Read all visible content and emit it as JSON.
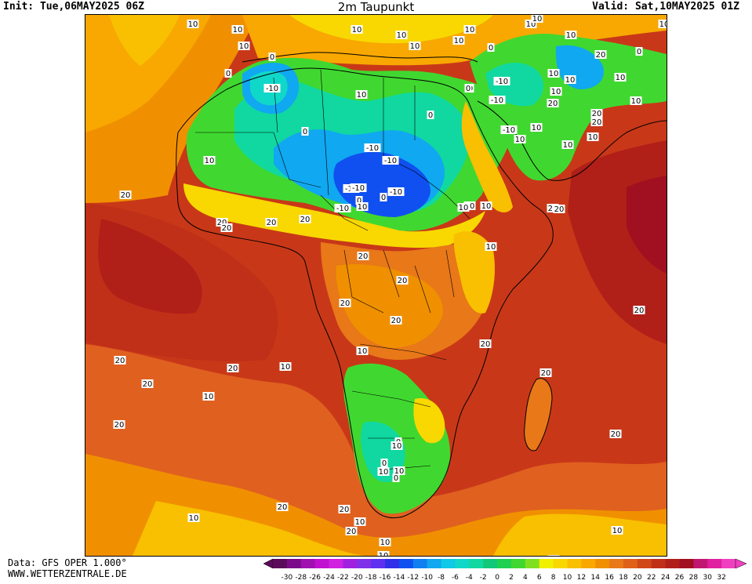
{
  "header": {
    "init": "Init: Tue,06MAY2025 06Z",
    "title": "2m Taupunkt",
    "valid": "Valid: Sat,10MAY2025 01Z"
  },
  "footer": {
    "data_source": "Data: GFS OPER 1.000°",
    "website": "WWW.WETTERZENTRALE.DE"
  },
  "colorbar": {
    "ticks": [
      "-30",
      "-28",
      "-26",
      "-24",
      "-22",
      "-20",
      "-18",
      "-16",
      "-14",
      "-12",
      "-10",
      "-8",
      "-6",
      "-4",
      "-2",
      "0",
      "2",
      "4",
      "6",
      "8",
      "10",
      "12",
      "14",
      "16",
      "18",
      "20",
      "22",
      "24",
      "26",
      "28",
      "30",
      "32"
    ],
    "colors": [
      "#5a0a5a",
      "#7a0a8a",
      "#a010b0",
      "#c010d0",
      "#d020e0",
      "#a020e0",
      "#8030e8",
      "#6030f0",
      "#3030e8",
      "#1050f0",
      "#1080f0",
      "#10a8f0",
      "#10c8e8",
      "#10d8c8",
      "#10d8a0",
      "#10c878",
      "#20d050",
      "#40d830",
      "#80e020",
      "#f0f000",
      "#f8d800",
      "#f8c000",
      "#f8a800",
      "#f09000",
      "#e87818",
      "#e06018",
      "#d04818",
      "#c03018",
      "#b02018",
      "#a01020",
      "#c01870",
      "#e020a0",
      "#f040c0"
    ]
  },
  "map": {
    "contour_labels": [
      {
        "text": "10"
      },
      {
        "text": "10"
      },
      {
        "text": "10"
      },
      {
        "text": "10"
      },
      {
        "text": "10"
      },
      {
        "text": "10"
      },
      {
        "text": "10"
      },
      {
        "text": "10"
      },
      {
        "text": "10"
      },
      {
        "text": "10"
      },
      {
        "text": "10"
      },
      {
        "text": "10"
      },
      {
        "text": "0"
      },
      {
        "text": "0"
      },
      {
        "text": "-10"
      },
      {
        "text": "10"
      },
      {
        "text": "0"
      },
      {
        "text": "0"
      },
      {
        "text": "-10"
      },
      {
        "text": "-10"
      },
      {
        "text": "-10"
      },
      {
        "text": "-10"
      },
      {
        "text": "-10"
      },
      {
        "text": "-10"
      },
      {
        "text": "-10"
      },
      {
        "text": "-10"
      },
      {
        "text": "20"
      },
      {
        "text": "10"
      },
      {
        "text": "10"
      },
      {
        "text": "20"
      },
      {
        "text": "20"
      },
      {
        "text": "20"
      },
      {
        "text": "20"
      },
      {
        "text": "20"
      },
      {
        "text": "20"
      },
      {
        "text": "20"
      },
      {
        "text": "20"
      },
      {
        "text": "20"
      },
      {
        "text": "20"
      },
      {
        "text": "20"
      },
      {
        "text": "20"
      },
      {
        "text": "20"
      },
      {
        "text": "0"
      },
      {
        "text": "0"
      },
      {
        "text": "0"
      },
      {
        "text": "0"
      },
      {
        "text": "10"
      },
      {
        "text": "10"
      },
      {
        "text": "10"
      },
      {
        "text": "10"
      },
      {
        "text": "20"
      },
      {
        "text": "20"
      },
      {
        "text": "20"
      },
      {
        "text": "20"
      },
      {
        "text": "20"
      },
      {
        "text": "20"
      },
      {
        "text": "20"
      },
      {
        "text": "20"
      },
      {
        "text": "10"
      },
      {
        "text": "10"
      },
      {
        "text": "10"
      },
      {
        "text": "10"
      },
      {
        "text": "10"
      },
      {
        "text": "10"
      },
      {
        "text": "10"
      },
      {
        "text": "0"
      },
      {
        "text": "-10"
      },
      {
        "text": "10"
      },
      {
        "text": "10"
      },
      {
        "text": "20"
      },
      {
        "text": "20"
      },
      {
        "text": "10"
      },
      {
        "text": "10"
      },
      {
        "text": "10"
      },
      {
        "text": "0"
      },
      {
        "text": "0"
      },
      {
        "text": "20"
      },
      {
        "text": "0"
      },
      {
        "text": "10"
      },
      {
        "text": "0"
      },
      {
        "text": "20"
      },
      {
        "text": "10"
      },
      {
        "text": "10"
      },
      {
        "text": "10"
      },
      {
        "text": "10"
      },
      {
        "text": "10"
      },
      {
        "text": "10"
      },
      {
        "text": "10"
      },
      {
        "text": "10"
      }
    ]
  }
}
